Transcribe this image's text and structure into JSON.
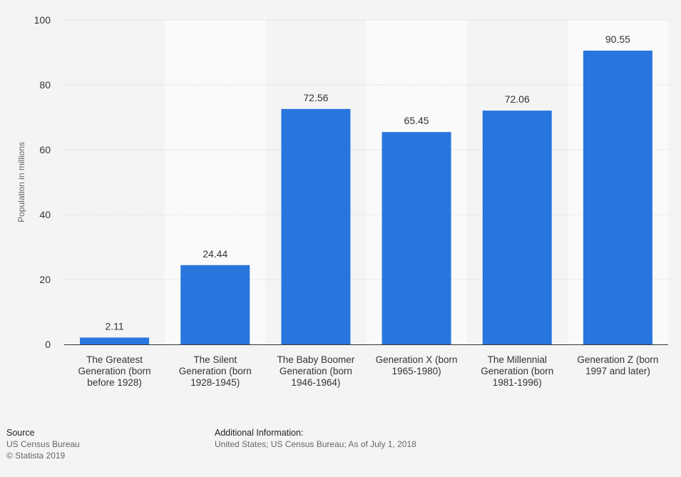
{
  "chart_data": {
    "type": "bar",
    "categories": [
      [
        "The Greatest",
        "Generation (born",
        "before 1928)"
      ],
      [
        "The Silent",
        "Generation (born",
        "1928-1945)"
      ],
      [
        "The Baby Boomer",
        "Generation (born",
        "1946-1964)"
      ],
      [
        "Generation X (born",
        "1965-1980)"
      ],
      [
        "The Millennial",
        "Generation (born",
        "1981-1996)"
      ],
      [
        "Generation Z (born",
        "1997 and later)"
      ]
    ],
    "values": [
      2.11,
      24.44,
      72.56,
      65.45,
      72.06,
      90.55
    ],
    "value_labels": [
      "2.11",
      "24.44",
      "72.56",
      "65.45",
      "72.06",
      "90.55"
    ],
    "ylabel": "Population in millions",
    "xlabel": "",
    "ylim": [
      0,
      100
    ],
    "yticks": [
      "0",
      "20",
      "40",
      "60",
      "80",
      "100"
    ],
    "grid": true,
    "bar_color": "#2876dd",
    "alt_band_color": "#fafafa"
  },
  "footer": {
    "source_title": "Source",
    "source_lines": [
      "US Census Bureau",
      "© Statista 2019"
    ],
    "info_title": "Additional Information:",
    "info_text": "United States; US Census Bureau; As of July 1, 2018"
  }
}
